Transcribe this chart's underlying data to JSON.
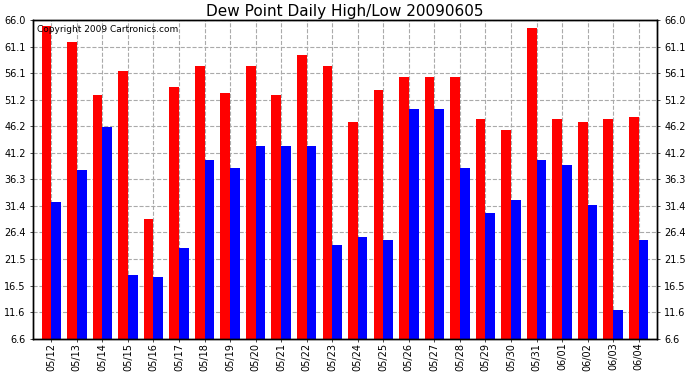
{
  "title": "Dew Point Daily High/Low 20090605",
  "copyright": "Copyright 2009 Cartronics.com",
  "dates": [
    "05/12",
    "05/13",
    "05/14",
    "05/15",
    "05/16",
    "05/17",
    "05/18",
    "05/19",
    "05/20",
    "05/21",
    "05/22",
    "05/23",
    "05/24",
    "05/25",
    "05/26",
    "05/27",
    "05/28",
    "05/29",
    "05/30",
    "05/31",
    "06/01",
    "06/02",
    "06/03",
    "06/04"
  ],
  "highs": [
    65.0,
    62.0,
    52.0,
    56.5,
    29.0,
    53.5,
    57.5,
    52.5,
    57.5,
    52.0,
    59.5,
    57.5,
    47.0,
    53.0,
    55.5,
    55.5,
    55.5,
    47.5,
    45.5,
    64.5,
    47.5,
    47.0,
    47.5,
    48.0
  ],
  "lows": [
    32.0,
    38.0,
    46.0,
    18.5,
    18.0,
    23.5,
    40.0,
    38.5,
    42.5,
    42.5,
    42.5,
    24.0,
    25.5,
    25.0,
    49.5,
    49.5,
    38.5,
    30.0,
    32.5,
    40.0,
    39.0,
    31.5,
    12.0,
    25.0
  ],
  "high_color": "#ff0000",
  "low_color": "#0000ff",
  "bg_color": "#ffffff",
  "plot_bg_color": "#ffffff",
  "grid_color": "#aaaaaa",
  "ymin": 6.6,
  "ymax": 66.0,
  "yticks": [
    6.6,
    11.6,
    16.5,
    21.5,
    26.4,
    31.4,
    36.3,
    41.2,
    46.2,
    51.2,
    56.1,
    61.1,
    66.0
  ],
  "title_fontsize": 11,
  "tick_fontsize": 7,
  "bar_width": 0.38,
  "figwidth": 6.9,
  "figheight": 3.75,
  "dpi": 100
}
